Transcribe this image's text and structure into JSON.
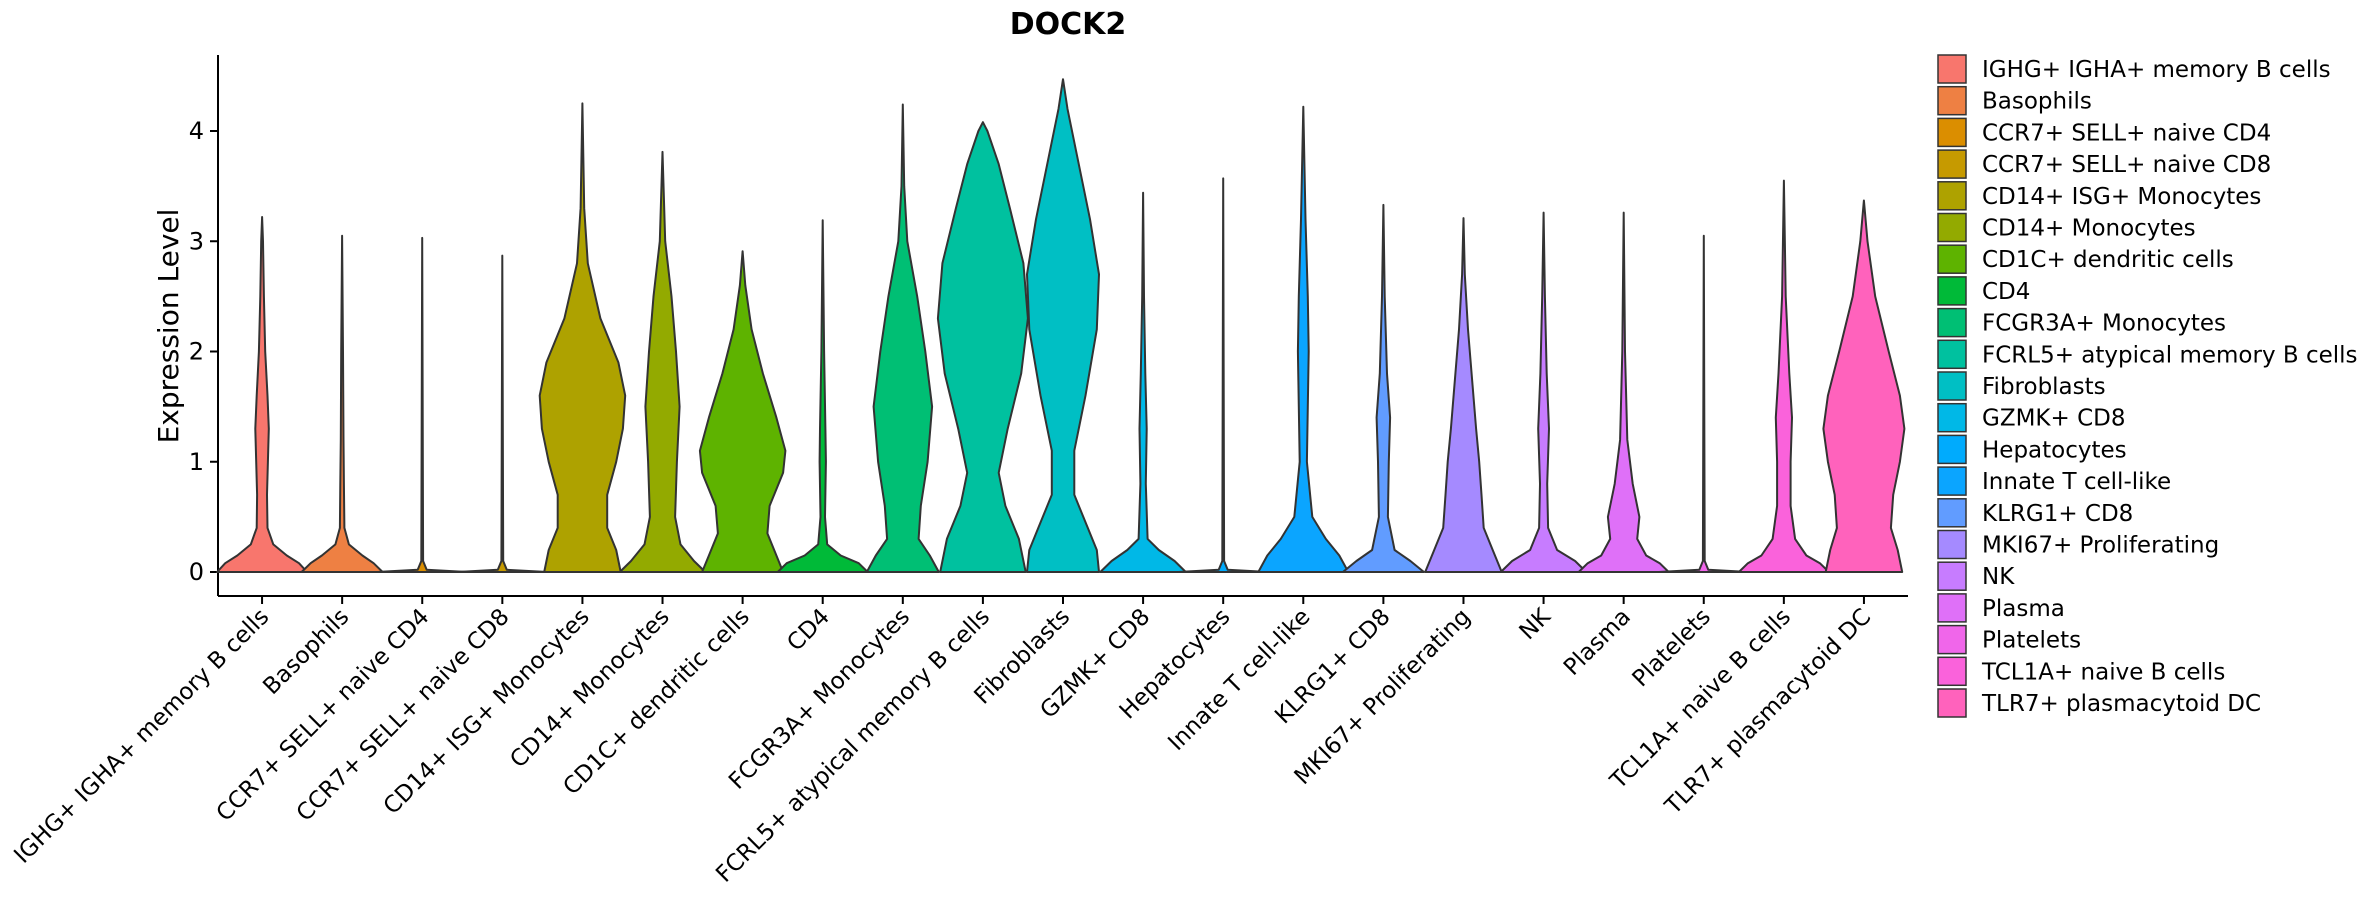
{
  "chart_data": {
    "type": "violin",
    "title": "DOCK2",
    "xlabel": "",
    "ylabel": "Expression Level",
    "ylim": [
      -0.22,
      4.55
    ],
    "yticks": [
      "0",
      "1",
      "2",
      "3",
      "4"
    ],
    "legend_position": "right",
    "categories": [
      {
        "label": "IGHG+ IGHA+ memory B cells",
        "legend": " IGHG+ IGHA+ memory B cells",
        "color": "#F8766D",
        "max": 3.22,
        "profile": [
          [
            0,
            1.0
          ],
          [
            0.08,
            0.82
          ],
          [
            0.15,
            0.55
          ],
          [
            0.25,
            0.25
          ],
          [
            0.4,
            0.12
          ],
          [
            0.7,
            0.11
          ],
          [
            1.0,
            0.13
          ],
          [
            1.3,
            0.15
          ],
          [
            1.6,
            0.12
          ],
          [
            2.0,
            0.07
          ],
          [
            2.5,
            0.04
          ],
          [
            3.0,
            0.02
          ],
          [
            3.22,
            0.0
          ]
        ]
      },
      {
        "label": "Basophils",
        "legend": "Basophils",
        "color": "#EE8043",
        "max": 3.05,
        "profile": [
          [
            0,
            0.9
          ],
          [
            0.08,
            0.7
          ],
          [
            0.15,
            0.45
          ],
          [
            0.25,
            0.15
          ],
          [
            0.4,
            0.05
          ],
          [
            0.8,
            0.04
          ],
          [
            1.2,
            0.03
          ],
          [
            2.0,
            0.02
          ],
          [
            3.05,
            0.0
          ]
        ]
      },
      {
        "label": "CCR7+ SELL+ naive CD4",
        "legend": "CCR7+ SELL+ naive CD4",
        "color": "#DB8E00",
        "max": 3.03,
        "profile": [
          [
            0,
            1.0
          ],
          [
            0.02,
            0.1
          ],
          [
            0.1,
            0.02
          ],
          [
            3.03,
            0.0
          ]
        ]
      },
      {
        "label": "CCR7+ SELL+ naive CD8",
        "legend": "CCR7+ SELL+ naive CD8",
        "color": "#C69A00",
        "max": 2.87,
        "profile": [
          [
            0,
            1.0
          ],
          [
            0.02,
            0.1
          ],
          [
            0.1,
            0.02
          ],
          [
            2.87,
            0.0
          ]
        ]
      },
      {
        "label": "CD14+ ISG+ Monocytes",
        "legend": "CD14+ ISG+ Monocytes",
        "color": "#AEA200",
        "max": 4.25,
        "profile": [
          [
            0,
            0.85
          ],
          [
            0.2,
            0.75
          ],
          [
            0.4,
            0.55
          ],
          [
            0.7,
            0.55
          ],
          [
            1.0,
            0.75
          ],
          [
            1.3,
            0.9
          ],
          [
            1.6,
            0.95
          ],
          [
            1.9,
            0.8
          ],
          [
            2.3,
            0.4
          ],
          [
            2.8,
            0.12
          ],
          [
            3.3,
            0.04
          ],
          [
            4.25,
            0.0
          ]
        ]
      },
      {
        "label": "CD14+ Monocytes",
        "legend": "CD14+ Monocytes",
        "color": "#93AA00",
        "max": 3.81,
        "profile": [
          [
            0,
            0.95
          ],
          [
            0.1,
            0.7
          ],
          [
            0.25,
            0.4
          ],
          [
            0.5,
            0.28
          ],
          [
            1.0,
            0.32
          ],
          [
            1.5,
            0.38
          ],
          [
            2.0,
            0.3
          ],
          [
            2.5,
            0.2
          ],
          [
            3.0,
            0.06
          ],
          [
            3.81,
            0.0
          ]
        ]
      },
      {
        "label": "CD1C+ dendritic cells",
        "legend": "CD1C+ dendritic cells",
        "color": "#5EB300",
        "max": 2.91,
        "profile": [
          [
            0,
            0.9
          ],
          [
            0.15,
            0.75
          ],
          [
            0.35,
            0.55
          ],
          [
            0.6,
            0.6
          ],
          [
            0.9,
            0.9
          ],
          [
            1.1,
            0.95
          ],
          [
            1.4,
            0.75
          ],
          [
            1.8,
            0.45
          ],
          [
            2.2,
            0.2
          ],
          [
            2.6,
            0.06
          ],
          [
            2.91,
            0.0
          ]
        ]
      },
      {
        "label": "CD4",
        "legend": "CD4",
        "color": "#00BA38",
        "max": 3.19,
        "profile": [
          [
            0,
            1.0
          ],
          [
            0.08,
            0.8
          ],
          [
            0.15,
            0.4
          ],
          [
            0.25,
            0.1
          ],
          [
            0.5,
            0.05
          ],
          [
            1.0,
            0.07
          ],
          [
            1.3,
            0.06
          ],
          [
            2.0,
            0.03
          ],
          [
            3.19,
            0.0
          ]
        ]
      },
      {
        "label": "FCGR3A+ Monocytes",
        "legend": "FCGR3A+ Monocytes",
        "color": "#00BF74",
        "max": 4.24,
        "profile": [
          [
            0,
            0.8
          ],
          [
            0.15,
            0.6
          ],
          [
            0.3,
            0.35
          ],
          [
            0.6,
            0.4
          ],
          [
            1.0,
            0.55
          ],
          [
            1.5,
            0.65
          ],
          [
            2.0,
            0.5
          ],
          [
            2.5,
            0.32
          ],
          [
            3.0,
            0.1
          ],
          [
            3.5,
            0.03
          ],
          [
            4.24,
            0.0
          ]
        ]
      },
      {
        "label": "FCRL5+ atypical memory B cells",
        "legend": "FCRL5+ atypical memory B cells",
        "color": "#00C19F",
        "max": 4.08,
        "profile": [
          [
            0,
            0.95
          ],
          [
            0.3,
            0.8
          ],
          [
            0.6,
            0.5
          ],
          [
            0.9,
            0.35
          ],
          [
            1.3,
            0.55
          ],
          [
            1.8,
            0.85
          ],
          [
            2.3,
            1.0
          ],
          [
            2.8,
            0.9
          ],
          [
            3.3,
            0.6
          ],
          [
            3.7,
            0.35
          ],
          [
            4.0,
            0.1
          ],
          [
            4.08,
            0.0
          ]
        ]
      },
      {
        "label": "Fibroblasts",
        "legend": "Fibroblasts",
        "color": "#00BFC4",
        "max": 4.47,
        "profile": [
          [
            0,
            0.8
          ],
          [
            0.2,
            0.75
          ],
          [
            0.4,
            0.55
          ],
          [
            0.7,
            0.25
          ],
          [
            1.1,
            0.25
          ],
          [
            1.6,
            0.5
          ],
          [
            2.2,
            0.75
          ],
          [
            2.7,
            0.8
          ],
          [
            3.2,
            0.6
          ],
          [
            3.8,
            0.3
          ],
          [
            4.2,
            0.1
          ],
          [
            4.47,
            0.0
          ]
        ]
      },
      {
        "label": "GZMK+ CD8",
        "legend": "GZMK+ CD8",
        "color": "#00B8E7",
        "max": 3.44,
        "profile": [
          [
            0,
            0.95
          ],
          [
            0.1,
            0.7
          ],
          [
            0.2,
            0.35
          ],
          [
            0.3,
            0.1
          ],
          [
            0.8,
            0.06
          ],
          [
            1.3,
            0.08
          ],
          [
            1.8,
            0.05
          ],
          [
            2.5,
            0.02
          ],
          [
            3.44,
            0.0
          ]
        ]
      },
      {
        "label": "Hepatocytes",
        "legend": "Hepatocytes",
        "color": "#00ABFD",
        "max": 3.57,
        "profile": [
          [
            0,
            1.0
          ],
          [
            0.02,
            0.1
          ],
          [
            0.1,
            0.02
          ],
          [
            3.57,
            0.0
          ]
        ]
      },
      {
        "label": "Innate T cell-like",
        "legend": "Innate T cell-like",
        "color": "#0BA5FF",
        "max": 4.22,
        "profile": [
          [
            0,
            1.0
          ],
          [
            0.15,
            0.8
          ],
          [
            0.3,
            0.5
          ],
          [
            0.5,
            0.2
          ],
          [
            1.0,
            0.08
          ],
          [
            1.5,
            0.1
          ],
          [
            2.0,
            0.12
          ],
          [
            2.5,
            0.1
          ],
          [
            3.2,
            0.05
          ],
          [
            4.22,
            0.0
          ]
        ]
      },
      {
        "label": "KLRG1+ CD8",
        "legend": "KLRG1+ CD8",
        "color": "#619CFF",
        "max": 3.33,
        "profile": [
          [
            0,
            0.9
          ],
          [
            0.1,
            0.6
          ],
          [
            0.2,
            0.25
          ],
          [
            0.5,
            0.1
          ],
          [
            1.0,
            0.12
          ],
          [
            1.4,
            0.15
          ],
          [
            1.8,
            0.08
          ],
          [
            2.5,
            0.03
          ],
          [
            3.33,
            0.0
          ]
        ]
      },
      {
        "label": "MKI67+ Proliferating",
        "legend": "MKI67+ Proliferating",
        "color": "#A58AFF",
        "max": 3.21,
        "profile": [
          [
            0,
            0.85
          ],
          [
            0.2,
            0.65
          ],
          [
            0.4,
            0.45
          ],
          [
            0.7,
            0.4
          ],
          [
            1.0,
            0.35
          ],
          [
            1.3,
            0.28
          ],
          [
            1.7,
            0.2
          ],
          [
            2.2,
            0.1
          ],
          [
            2.7,
            0.03
          ],
          [
            3.21,
            0.0
          ]
        ]
      },
      {
        "label": "NK",
        "legend": "NK",
        "color": "#C77CFF",
        "max": 3.26,
        "profile": [
          [
            0,
            0.95
          ],
          [
            0.1,
            0.7
          ],
          [
            0.2,
            0.3
          ],
          [
            0.4,
            0.1
          ],
          [
            0.8,
            0.08
          ],
          [
            1.3,
            0.12
          ],
          [
            1.8,
            0.07
          ],
          [
            2.5,
            0.03
          ],
          [
            3.26,
            0.0
          ]
        ]
      },
      {
        "label": "Plasma",
        "legend": "Plasma",
        "color": "#DF70F8",
        "max": 3.26,
        "profile": [
          [
            0,
            1.0
          ],
          [
            0.08,
            0.8
          ],
          [
            0.15,
            0.5
          ],
          [
            0.3,
            0.3
          ],
          [
            0.5,
            0.35
          ],
          [
            0.8,
            0.2
          ],
          [
            1.2,
            0.08
          ],
          [
            2.0,
            0.03
          ],
          [
            3.26,
            0.0
          ]
        ]
      },
      {
        "label": "Platelets",
        "legend": "Platelets",
        "color": "#F066EA",
        "max": 3.05,
        "profile": [
          [
            0,
            1.0
          ],
          [
            0.02,
            0.1
          ],
          [
            0.1,
            0.02
          ],
          [
            3.05,
            0.0
          ]
        ]
      },
      {
        "label": "TCL1A+ naive B cells",
        "legend": "TCL1A+ naive B cells",
        "color": "#FA62DB",
        "max": 3.55,
        "profile": [
          [
            0,
            1.0
          ],
          [
            0.08,
            0.8
          ],
          [
            0.15,
            0.5
          ],
          [
            0.3,
            0.25
          ],
          [
            0.6,
            0.15
          ],
          [
            1.0,
            0.15
          ],
          [
            1.4,
            0.18
          ],
          [
            1.8,
            0.12
          ],
          [
            2.5,
            0.04
          ],
          [
            3.55,
            0.0
          ]
        ]
      },
      {
        "label": "TLR7+ plasmacytoid DC",
        "legend": "TLR7+ plasmacytoid DC",
        "color": "#FF62BC",
        "max": 3.37,
        "profile": [
          [
            0,
            0.85
          ],
          [
            0.2,
            0.75
          ],
          [
            0.4,
            0.6
          ],
          [
            0.7,
            0.65
          ],
          [
            1.0,
            0.8
          ],
          [
            1.3,
            0.9
          ],
          [
            1.6,
            0.8
          ],
          [
            2.0,
            0.55
          ],
          [
            2.5,
            0.25
          ],
          [
            3.0,
            0.08
          ],
          [
            3.37,
            0.0
          ]
        ]
      }
    ]
  }
}
